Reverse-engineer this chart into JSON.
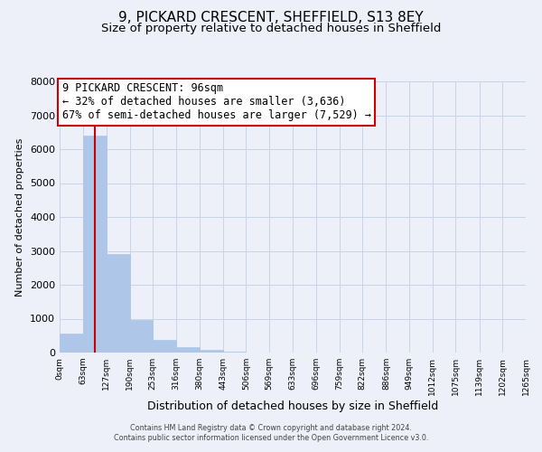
{
  "title_line1": "9, PICKARD CRESCENT, SHEFFIELD, S13 8EY",
  "title_line2": "Size of property relative to detached houses in Sheffield",
  "xlabel": "Distribution of detached houses by size in Sheffield",
  "ylabel": "Number of detached properties",
  "bin_edges": [
    0,
    63,
    127,
    190,
    253,
    316,
    380,
    443,
    506,
    569,
    633,
    696,
    759,
    822,
    886,
    949,
    1012,
    1075,
    1139,
    1202,
    1265
  ],
  "bin_labels": [
    "0sqm",
    "63sqm",
    "127sqm",
    "190sqm",
    "253sqm",
    "316sqm",
    "380sqm",
    "443sqm",
    "506sqm",
    "569sqm",
    "633sqm",
    "696sqm",
    "759sqm",
    "822sqm",
    "886sqm",
    "949sqm",
    "1012sqm",
    "1075sqm",
    "1139sqm",
    "1202sqm",
    "1265sqm"
  ],
  "bar_heights": [
    550,
    6400,
    2900,
    950,
    370,
    170,
    80,
    30,
    0,
    0,
    0,
    0,
    0,
    0,
    0,
    0,
    0,
    0,
    0,
    0
  ],
  "bar_color": "#aec6e8",
  "bar_edgecolor": "#aec6e8",
  "property_size": 96,
  "vline_color": "#cc0000",
  "annotation_line1": "9 PICKARD CRESCENT: 96sqm",
  "annotation_line2": "← 32% of detached houses are smaller (3,636)",
  "annotation_line3": "67% of semi-detached houses are larger (7,529) →",
  "annotation_box_edgecolor": "#cc0000",
  "annotation_box_facecolor": "#ffffff",
  "ylim": [
    0,
    8000
  ],
  "yticks": [
    0,
    1000,
    2000,
    3000,
    4000,
    5000,
    6000,
    7000,
    8000
  ],
  "grid_color": "#c8d4e8",
  "background_color": "#edf0f8",
  "footer_line1": "Contains HM Land Registry data © Crown copyright and database right 2024.",
  "footer_line2": "Contains public sector information licensed under the Open Government Licence v3.0.",
  "title_fontsize": 11,
  "subtitle_fontsize": 9.5,
  "xlabel_fontsize": 9,
  "ylabel_fontsize": 8,
  "annotation_fontsize": 8.5
}
